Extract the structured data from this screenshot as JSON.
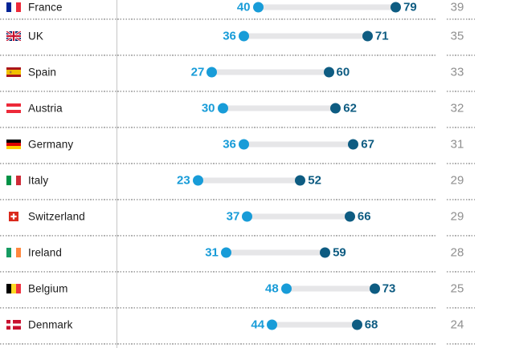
{
  "chart_data": {
    "type": "scatter",
    "subtype": "dumbbell",
    "title": "",
    "xlabel": "",
    "ylabel": "",
    "legend": "none",
    "grid": "dotted horizontal row separators, single vertical baseline at value 0",
    "x_baseline_value": 0,
    "columns": [
      "country",
      "low_value",
      "high_value",
      "difference"
    ],
    "rows": [
      {
        "country": "France",
        "low": 40,
        "high": 79,
        "diff": 39,
        "flag": {
          "name": "france-flag",
          "kind": "v",
          "colors": [
            "#002395",
            "#ffffff",
            "#ed2939"
          ]
        }
      },
      {
        "country": "UK",
        "low": 36,
        "high": 71,
        "diff": 35,
        "flag": {
          "name": "uk-flag",
          "kind": "unionjack",
          "field": "#012169",
          "red": "#c8102e",
          "white": "#ffffff"
        }
      },
      {
        "country": "Spain",
        "low": 27,
        "high": 60,
        "diff": 33,
        "flag": {
          "name": "spain-flag",
          "kind": "h",
          "colors": [
            "#aa151b",
            "#f1bf00",
            "#aa151b"
          ],
          "weights": [
            1,
            2,
            1
          ],
          "emblem": "#b07a3a"
        }
      },
      {
        "country": "Austria",
        "low": 30,
        "high": 62,
        "diff": 32,
        "flag": {
          "name": "austria-flag",
          "kind": "h",
          "colors": [
            "#ed2939",
            "#ffffff",
            "#ed2939"
          ]
        }
      },
      {
        "country": "Germany",
        "low": 36,
        "high": 67,
        "diff": 31,
        "flag": {
          "name": "germany-flag",
          "kind": "h",
          "colors": [
            "#000000",
            "#dd0000",
            "#ffce00"
          ]
        }
      },
      {
        "country": "Italy",
        "low": 23,
        "high": 52,
        "diff": 29,
        "flag": {
          "name": "italy-flag",
          "kind": "v",
          "colors": [
            "#009246",
            "#ffffff",
            "#ce2b37"
          ]
        }
      },
      {
        "country": "Switzerland",
        "low": 37,
        "high": 66,
        "diff": 29,
        "flag": {
          "name": "switzerland-flag",
          "kind": "swiss",
          "bg": "#da291c",
          "cross": "#ffffff"
        }
      },
      {
        "country": "Ireland",
        "low": 31,
        "high": 59,
        "diff": 28,
        "flag": {
          "name": "ireland-flag",
          "kind": "v",
          "colors": [
            "#169b62",
            "#ffffff",
            "#ff883e"
          ]
        }
      },
      {
        "country": "Belgium",
        "low": 48,
        "high": 73,
        "diff": 25,
        "flag": {
          "name": "belgium-flag",
          "kind": "v",
          "colors": [
            "#000000",
            "#fdda24",
            "#ef3340"
          ]
        }
      },
      {
        "country": "Denmark",
        "low": 44,
        "high": 68,
        "diff": 24,
        "flag": {
          "name": "denmark-flag",
          "kind": "nordic",
          "bg": "#c8102e",
          "cross": "#ffffff"
        }
      }
    ],
    "colors": {
      "low_dot": "#189cd8",
      "high_dot": "#0e5c82",
      "connector_bar": "#e6e6e8",
      "diff_text": "#8f8f8f",
      "country_text": "#1a1a1a",
      "separator_dots": "#ababab",
      "baseline": "#c6c6c6"
    }
  }
}
